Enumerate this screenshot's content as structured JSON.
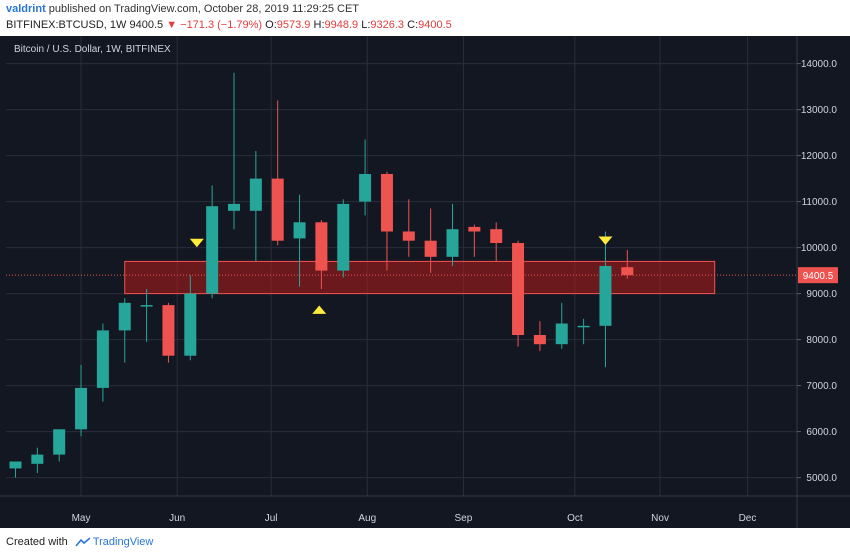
{
  "header": {
    "user": "valdrint",
    "published_text": "published on TradingView.com, October 28, 2019 11:29:25 CET",
    "symbol": "BITFINEX:BTCUSD, 1W",
    "last": "9400.5",
    "change_arrow": "▼",
    "change": "−171.3 (−1.79%)",
    "o_label": "O:",
    "o_value": "9573.9",
    "h_label": "H:",
    "h_value": "9948.9",
    "l_label": "L:",
    "l_value": "9326.3",
    "c_label": "C:",
    "c_value": "9400.5"
  },
  "footer": {
    "created_with": "Created with",
    "brand": "TradingView"
  },
  "colors": {
    "background": "#131722",
    "up": "#26a69a",
    "down": "#ef5350",
    "zone_fill": "#b71c1c",
    "zone_stroke": "#ef5350",
    "marker": "#ffeb3b",
    "price_tag": "#ef5350",
    "grid": "#2a2e39",
    "axis_text": "#d1d4dc"
  },
  "chart_data": {
    "type": "candlestick",
    "title": "Bitcoin / U.S. Dollar, 1W, BITFINEX",
    "ylim": [
      4600,
      14600
    ],
    "y_ticks": [
      5000,
      6000,
      7000,
      8000,
      9000,
      10000,
      11000,
      12000,
      13000,
      14000
    ],
    "y_tick_labels": [
      "5000.0",
      "6000.0",
      "7000.0",
      "8000.0",
      "9000.0",
      "10000.0",
      "11000.0",
      "12000.0",
      "13000.0",
      "14000.0"
    ],
    "x_ticks": [
      {
        "label": "May",
        "week": 3.0
      },
      {
        "label": "Jun",
        "week": 7.4
      },
      {
        "label": "Jul",
        "week": 11.7
      },
      {
        "label": "Aug",
        "week": 16.1
      },
      {
        "label": "Sep",
        "week": 20.5
      },
      {
        "label": "Oct",
        "week": 25.6
      },
      {
        "label": "Nov",
        "week": 29.5
      },
      {
        "label": "Dec",
        "week": 33.5
      }
    ],
    "candles": [
      {
        "o": 5200,
        "h": 5350,
        "l": 5000,
        "c": 5350
      },
      {
        "o": 5300,
        "h": 5650,
        "l": 5100,
        "c": 5500
      },
      {
        "o": 5500,
        "h": 6050,
        "l": 5350,
        "c": 6050
      },
      {
        "o": 6050,
        "h": 7450,
        "l": 5900,
        "c": 6950
      },
      {
        "o": 6950,
        "h": 8350,
        "l": 6650,
        "c": 8200
      },
      {
        "o": 8200,
        "h": 8900,
        "l": 7500,
        "c": 8800
      },
      {
        "o": 8750,
        "h": 9100,
        "l": 7950,
        "c": 8750
      },
      {
        "o": 8750,
        "h": 8800,
        "l": 7500,
        "c": 7650
      },
      {
        "o": 7650,
        "h": 9400,
        "l": 7550,
        "c": 9000
      },
      {
        "o": 9000,
        "h": 11350,
        "l": 8900,
        "c": 10900
      },
      {
        "o": 10800,
        "h": 13800,
        "l": 10400,
        "c": 10950
      },
      {
        "o": 10800,
        "h": 12100,
        "l": 9700,
        "c": 11500
      },
      {
        "o": 11500,
        "h": 13200,
        "l": 10050,
        "c": 10150
      },
      {
        "o": 10200,
        "h": 11150,
        "l": 9150,
        "c": 10550
      },
      {
        "o": 10550,
        "h": 10600,
        "l": 9100,
        "c": 9500
      },
      {
        "o": 9500,
        "h": 11050,
        "l": 9350,
        "c": 10950
      },
      {
        "o": 11000,
        "h": 12350,
        "l": 10700,
        "c": 11600
      },
      {
        "o": 11600,
        "h": 11650,
        "l": 9500,
        "c": 10350
      },
      {
        "o": 10350,
        "h": 11050,
        "l": 9800,
        "c": 10150
      },
      {
        "o": 10150,
        "h": 10850,
        "l": 9450,
        "c": 9800
      },
      {
        "o": 9800,
        "h": 10950,
        "l": 9600,
        "c": 10400
      },
      {
        "o": 10450,
        "h": 10500,
        "l": 9800,
        "c": 10350
      },
      {
        "o": 10400,
        "h": 10550,
        "l": 9700,
        "c": 10100
      },
      {
        "o": 10100,
        "h": 10150,
        "l": 7850,
        "c": 8100
      },
      {
        "o": 8100,
        "h": 8400,
        "l": 7750,
        "c": 7900
      },
      {
        "o": 7900,
        "h": 8800,
        "l": 7800,
        "c": 8350
      },
      {
        "o": 8300,
        "h": 8450,
        "l": 7900,
        "c": 8300
      },
      {
        "o": 8300,
        "h": 10350,
        "l": 7400,
        "c": 9600
      },
      {
        "o": 9574,
        "h": 9949,
        "l": 9326,
        "c": 9400.5
      }
    ],
    "zones": [
      {
        "y_low": 9000,
        "y_high": 9700,
        "week_start": 5.0,
        "week_end": 32.0
      }
    ],
    "markers": [
      {
        "week": 8.3,
        "price": 10100,
        "shape": "triangle-down"
      },
      {
        "week": 13.9,
        "price": 8650,
        "shape": "triangle-up"
      },
      {
        "week": 27.0,
        "price": 10150,
        "shape": "triangle-down"
      }
    ],
    "last_price": 9400.5,
    "last_price_label": "9400.5"
  }
}
